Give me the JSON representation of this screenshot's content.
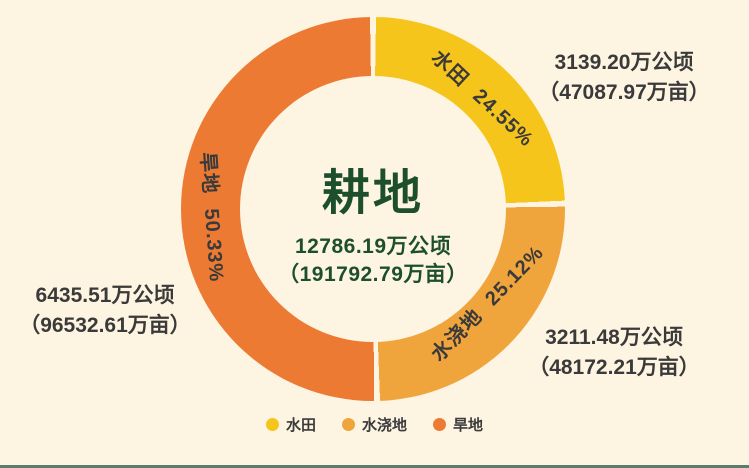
{
  "chart_data": {
    "type": "pie",
    "variant": "donut",
    "title": "耕地",
    "center_total_hectares": "12786.19万公顷",
    "center_total_mu": "（191792.79万亩）",
    "total_hectares_wan": 12786.19,
    "total_mu_wan": 191792.79,
    "start_angle_deg": 0,
    "direction": "clockwise",
    "legend_position": "bottom",
    "background_color": "#FDF4E2",
    "categories": [
      "水田",
      "水浇地",
      "旱地"
    ],
    "values_percent": [
      24.55,
      25.12,
      50.33
    ],
    "values_hectares_wan": [
      3139.2,
      3211.48,
      6435.51
    ],
    "values_mu_wan": [
      47087.97,
      48172.21,
      96532.61
    ],
    "series": [
      {
        "name": "水田",
        "percent_label": "24.55%",
        "arc_label": "水田 24.55%",
        "hectares": "3139.20万公顷",
        "mu": "（47087.97万亩）",
        "color": "#F6C51C"
      },
      {
        "name": "水浇地",
        "percent_label": "25.12%",
        "arc_label": "水浇地 25.12%",
        "hectares": "3211.48万公顷",
        "mu": "（48172.21万亩）",
        "color": "#F0A43C"
      },
      {
        "name": "旱地",
        "percent_label": "50.33%",
        "arc_label": "旱地 50.33%",
        "hectares": "6435.51万公顷",
        "mu": "（96532.61万亩）",
        "color": "#EC7A33"
      }
    ],
    "text_colors": {
      "center_green": "#1D4F2D",
      "label_dark": "#3A3A3A"
    }
  }
}
